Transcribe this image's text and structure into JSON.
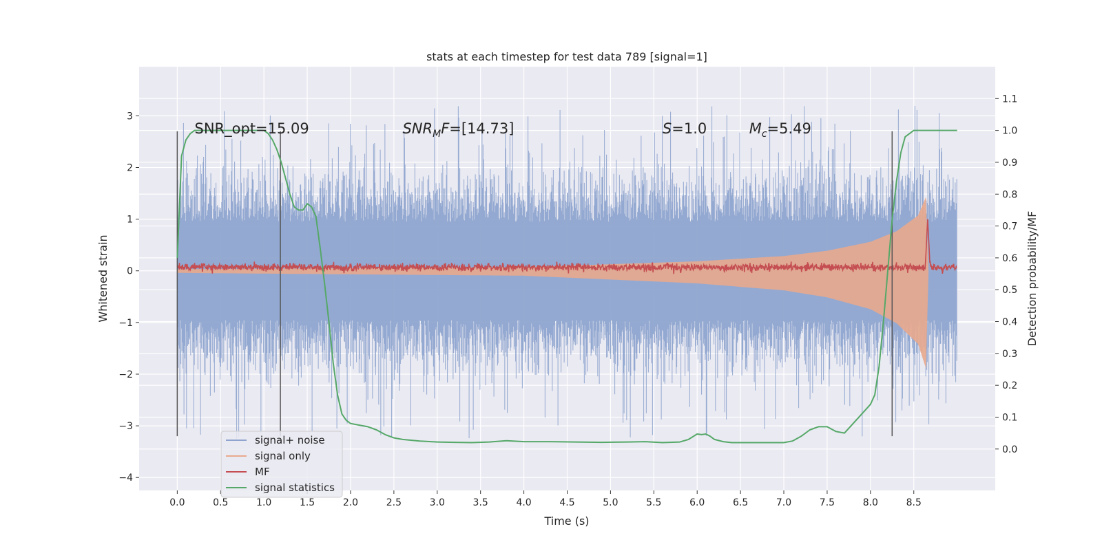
{
  "chart_data": {
    "type": "line",
    "title": "stats at each timestep for test data 789 [signal=1]",
    "xlabel": "Time (s)",
    "ylabel_left": "Whitened strain",
    "ylabel_right": "Detection probability/MF",
    "xlim": [
      -0.44,
      9.44
    ],
    "ylim_left": [
      -4.25,
      3.95
    ],
    "ylim_right": [
      -0.13,
      1.2
    ],
    "x_ticks": [
      0.0,
      0.5,
      1.0,
      1.5,
      2.0,
      2.5,
      3.0,
      3.5,
      4.0,
      4.5,
      5.0,
      5.5,
      6.0,
      6.5,
      7.0,
      7.5,
      8.0,
      8.5
    ],
    "y_ticks_left": [
      -4,
      -3,
      -2,
      -1,
      0,
      1,
      2,
      3
    ],
    "y_ticks_right": [
      0.0,
      0.1,
      0.2,
      0.3,
      0.4,
      0.5,
      0.6,
      0.7,
      0.8,
      0.9,
      1.0,
      1.1
    ],
    "grid": true,
    "annotations": [
      {
        "text": "SNR_opt=15.09",
        "x": 0.2
      },
      {
        "text": "SNR",
        "sub": "M",
        "rest": "F=[14.73]",
        "x": 2.6,
        "italic": true
      },
      {
        "text": "S",
        "rest": "=1.0",
        "x": 5.6,
        "italic": true
      },
      {
        "text": "M",
        "sub": "c",
        "rest": "=5.49",
        "x": 6.6,
        "italic": true
      }
    ],
    "annotation_y": 2.75,
    "vertical_lines": [
      {
        "x": 0.0,
        "y0": -3.2,
        "y1": 2.7
      },
      {
        "x": 1.19,
        "y0": -3.2,
        "y1": 2.7
      },
      {
        "x": 8.25,
        "y0": -3.2,
        "y1": 2.7
      }
    ],
    "series": [
      {
        "name": "signal+ noise",
        "color": "#8fa5cf",
        "axis": "left",
        "x_range": [
          0.0,
          9.0
        ],
        "envelope_upper_typical": 1.4,
        "envelope_lower_typical": -1.5,
        "peak_max": 3.55,
        "peak_min": -4.0,
        "core_width": 0.95
      },
      {
        "name": "signal only",
        "color": "#e8a98d",
        "axis": "left",
        "x_range": [
          0.0,
          8.67
        ],
        "amplitude": [
          [
            0.0,
            0.03
          ],
          [
            4.0,
            0.07
          ],
          [
            6.0,
            0.18
          ],
          [
            7.0,
            0.28
          ],
          [
            7.5,
            0.38
          ],
          [
            8.0,
            0.55
          ],
          [
            8.3,
            0.75
          ],
          [
            8.55,
            1.05
          ],
          [
            8.64,
            1.4
          ],
          [
            8.67,
            0.0
          ]
        ]
      },
      {
        "name": "MF",
        "color": "#c44e52",
        "axis": "left",
        "x_range": [
          0.0,
          9.0
        ],
        "baseline": 0.07,
        "noise": 0.06,
        "peak": {
          "x": 8.66,
          "y": 1.0
        }
      },
      {
        "name": "signal statistics",
        "color": "#55a868",
        "axis": "right",
        "x": [
          0.0,
          0.05,
          0.1,
          0.15,
          0.2,
          0.3,
          0.5,
          0.7,
          0.9,
          1.0,
          1.05,
          1.1,
          1.15,
          1.2,
          1.25,
          1.3,
          1.35,
          1.4,
          1.45,
          1.5,
          1.55,
          1.6,
          1.65,
          1.7,
          1.75,
          1.8,
          1.85,
          1.9,
          1.95,
          2.0,
          2.1,
          2.2,
          2.3,
          2.4,
          2.5,
          2.6,
          2.8,
          3.0,
          3.2,
          3.4,
          3.6,
          3.8,
          4.0,
          4.3,
          4.6,
          4.9,
          5.2,
          5.4,
          5.6,
          5.8,
          5.9,
          6.0,
          6.05,
          6.1,
          6.15,
          6.2,
          6.3,
          6.4,
          6.6,
          6.8,
          7.0,
          7.1,
          7.2,
          7.3,
          7.4,
          7.5,
          7.6,
          7.7,
          7.8,
          7.9,
          8.0,
          8.05,
          8.1,
          8.15,
          8.2,
          8.25,
          8.3,
          8.35,
          8.4,
          8.45,
          8.5,
          8.6,
          8.8,
          9.0
        ],
        "y": [
          0.6,
          0.92,
          0.97,
          0.99,
          1.0,
          1.0,
          1.0,
          1.0,
          1.0,
          1.0,
          0.99,
          0.97,
          0.94,
          0.9,
          0.85,
          0.8,
          0.76,
          0.75,
          0.75,
          0.77,
          0.76,
          0.73,
          0.63,
          0.52,
          0.4,
          0.27,
          0.17,
          0.11,
          0.09,
          0.08,
          0.075,
          0.07,
          0.06,
          0.045,
          0.035,
          0.03,
          0.025,
          0.022,
          0.021,
          0.02,
          0.022,
          0.026,
          0.023,
          0.023,
          0.022,
          0.021,
          0.022,
          0.023,
          0.02,
          0.022,
          0.03,
          0.047,
          0.045,
          0.047,
          0.04,
          0.03,
          0.023,
          0.02,
          0.02,
          0.02,
          0.02,
          0.025,
          0.04,
          0.06,
          0.07,
          0.07,
          0.055,
          0.05,
          0.08,
          0.11,
          0.14,
          0.17,
          0.26,
          0.4,
          0.56,
          0.72,
          0.84,
          0.93,
          0.98,
          0.99,
          1.0,
          1.0,
          1.0,
          1.0
        ]
      }
    ],
    "legend_location": "lower-left"
  }
}
